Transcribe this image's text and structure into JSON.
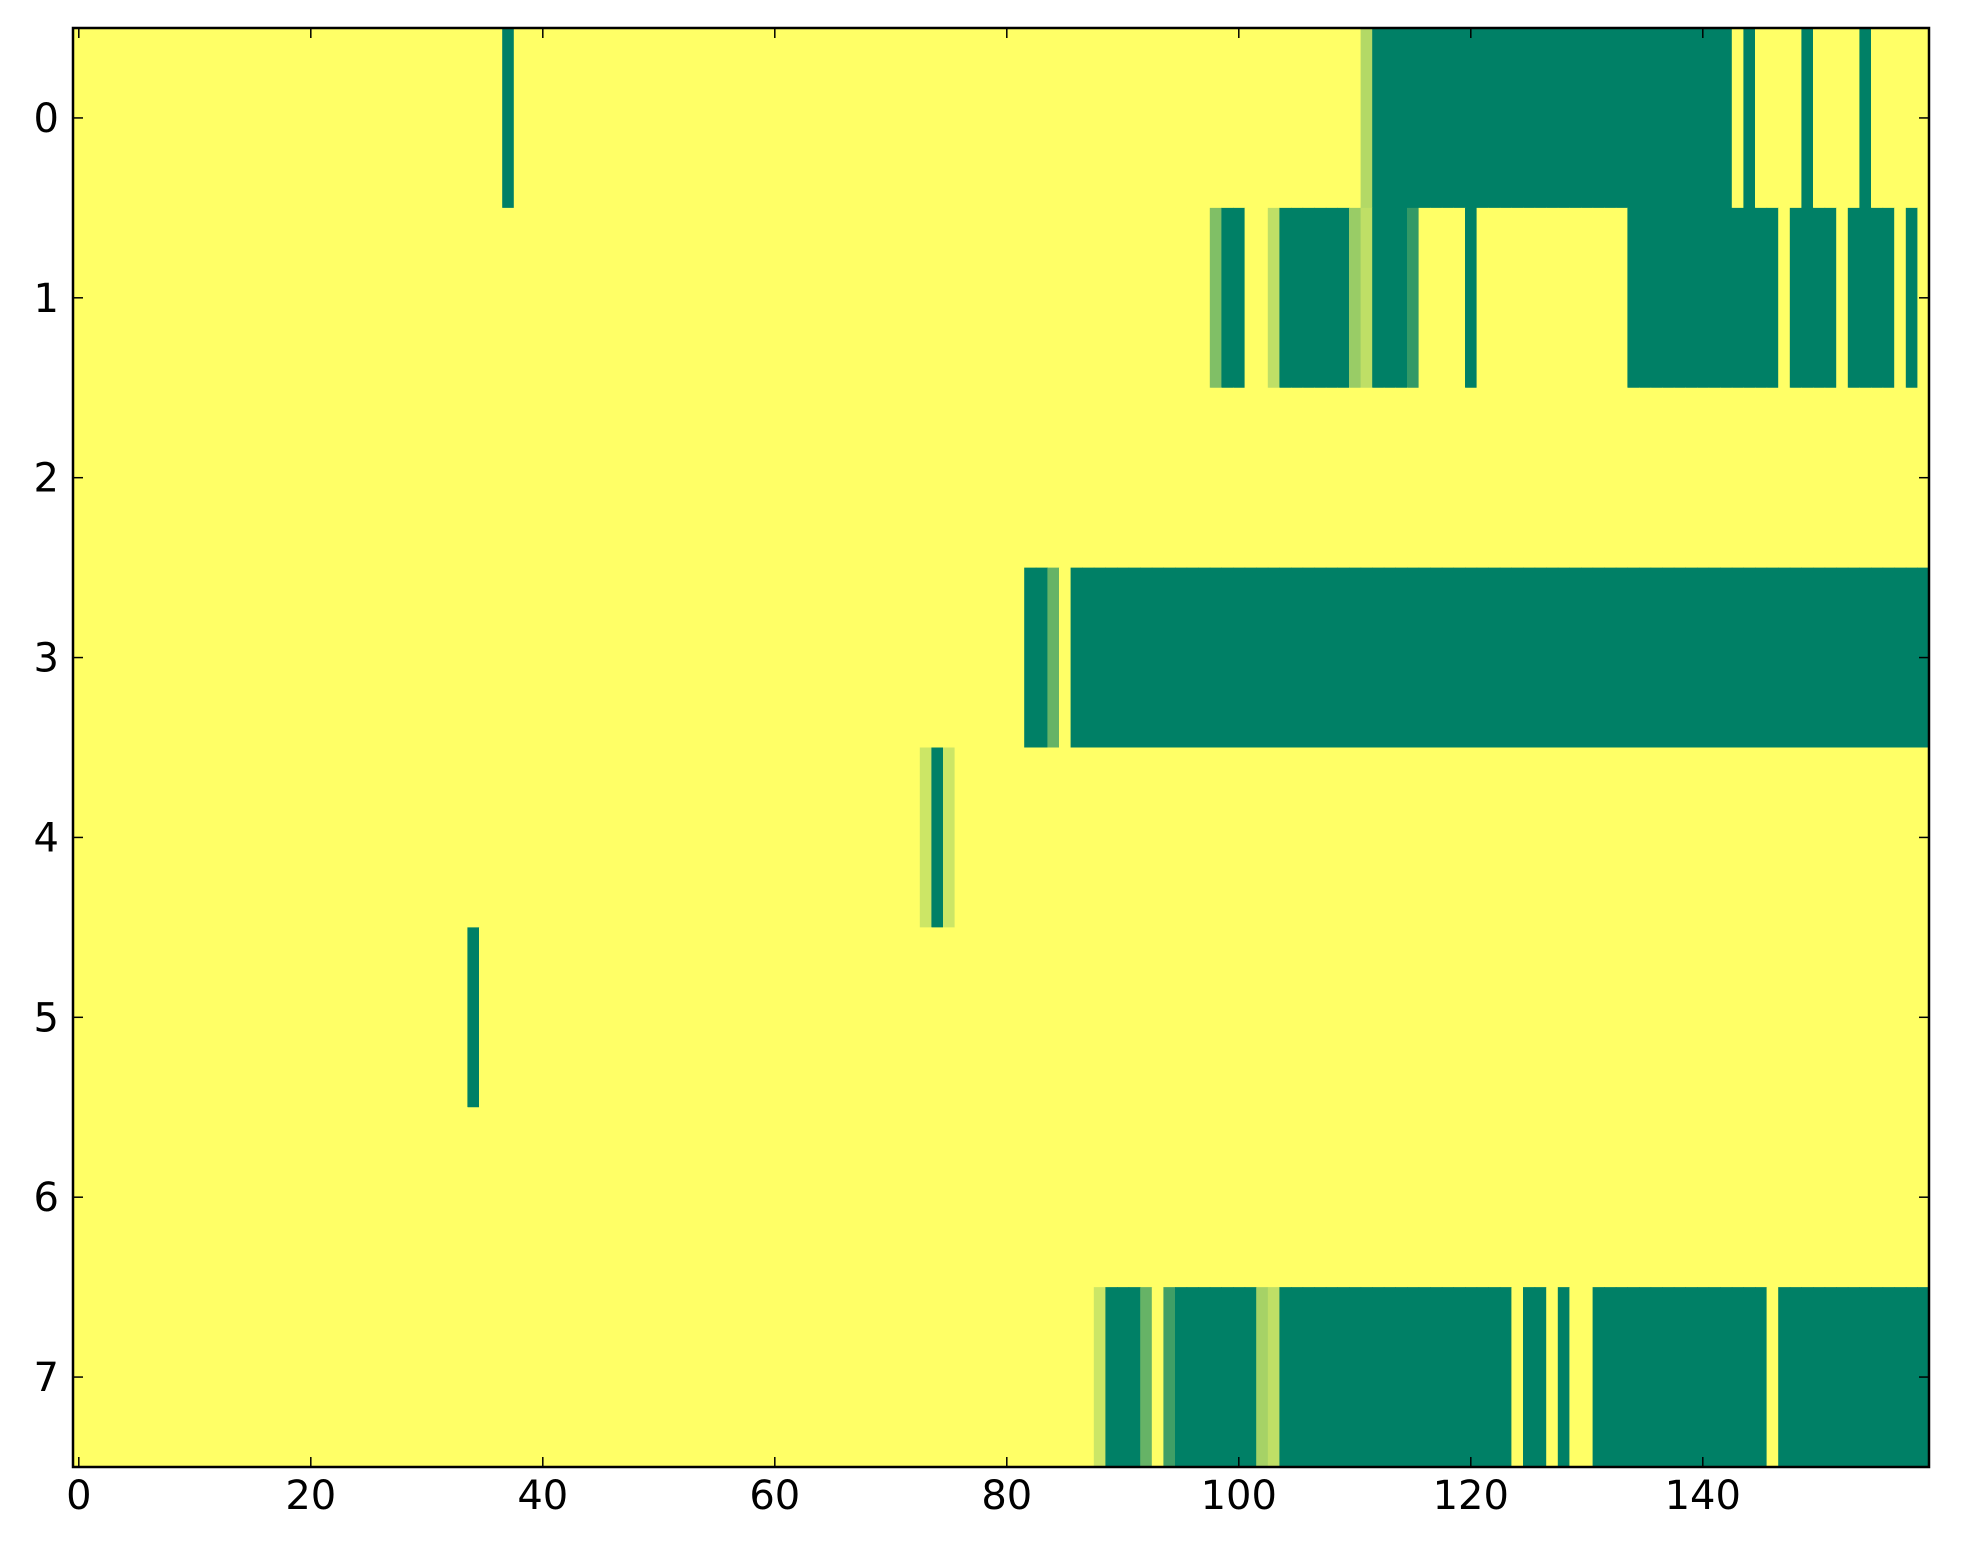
{
  "chart_data": {
    "type": "heatmap",
    "colormap": "summer_r",
    "zlim": [
      0,
      1
    ],
    "xlim": [
      -0.5,
      159.5
    ],
    "ylim": [
      7.5,
      -0.5
    ],
    "xticks": [
      0,
      20,
      40,
      60,
      80,
      100,
      120,
      140
    ],
    "yticks": [
      0,
      1,
      2,
      3,
      4,
      5,
      6,
      7
    ],
    "z": [
      [
        0,
        0,
        0,
        0,
        0,
        0,
        0,
        0,
        0,
        0,
        0,
        0,
        0,
        0,
        0,
        0,
        0,
        0,
        0,
        0,
        0,
        0,
        0,
        0,
        0,
        0,
        0,
        0,
        0,
        0,
        0,
        0,
        0,
        0,
        0,
        0,
        0,
        1,
        0,
        0,
        0,
        0,
        0,
        0,
        0,
        0,
        0,
        0,
        0,
        0,
        0,
        0,
        0,
        0,
        0,
        0,
        0,
        0,
        0,
        0,
        0,
        0,
        0,
        0,
        0,
        0,
        0,
        0,
        0,
        0,
        0,
        0,
        0,
        0,
        0,
        0,
        0,
        0,
        0,
        0,
        0,
        0,
        0,
        0,
        0,
        0,
        0,
        0,
        0,
        0,
        0,
        0,
        0,
        0,
        0,
        0,
        0,
        0,
        0,
        0,
        0,
        0,
        0,
        0,
        0,
        0,
        0,
        0,
        0,
        0,
        0,
        0.3,
        1,
        1,
        1,
        1,
        1,
        1,
        1,
        1,
        1,
        1,
        1,
        1,
        1,
        1,
        1,
        1,
        1,
        1,
        1,
        1,
        1,
        1,
        1,
        1,
        1,
        1,
        1,
        1,
        1,
        1,
        1,
        0,
        1,
        0,
        0,
        0,
        0,
        1,
        0,
        0,
        0,
        0,
        1,
        0,
        0,
        0,
        0,
        0
      ],
      [
        0,
        0,
        0,
        0,
        0,
        0,
        0,
        0,
        0,
        0,
        0,
        0,
        0,
        0,
        0,
        0,
        0,
        0,
        0,
        0,
        0,
        0,
        0,
        0,
        0,
        0,
        0,
        0,
        0,
        0,
        0,
        0,
        0,
        0,
        0,
        0,
        0,
        0,
        0,
        0,
        0,
        0,
        0,
        0,
        0,
        0,
        0,
        0,
        0,
        0,
        0,
        0,
        0,
        0,
        0,
        0,
        0,
        0,
        0,
        0,
        0,
        0,
        0,
        0,
        0,
        0,
        0,
        0,
        0,
        0,
        0,
        0,
        0,
        0,
        0,
        0,
        0,
        0,
        0,
        0,
        0,
        0,
        0,
        0,
        0,
        0,
        0,
        0,
        0,
        0,
        0,
        0,
        0,
        0,
        0,
        0,
        0,
        0,
        0.5,
        1,
        1,
        0,
        0,
        0.25,
        1,
        1,
        1,
        1,
        1,
        1,
        0.4,
        0.25,
        1,
        1,
        1,
        0.8,
        0,
        0,
        0,
        0,
        1,
        0,
        0,
        0,
        0,
        0,
        0,
        0,
        0,
        0,
        0,
        0,
        0,
        0,
        1,
        1,
        1,
        1,
        1,
        1,
        1,
        1,
        1,
        1,
        1,
        1,
        1,
        0,
        1,
        1,
        1,
        1,
        0,
        1,
        1,
        1,
        1,
        0,
        1,
        0
      ],
      [
        0,
        0,
        0,
        0,
        0,
        0,
        0,
        0,
        0,
        0,
        0,
        0,
        0,
        0,
        0,
        0,
        0,
        0,
        0,
        0,
        0,
        0,
        0,
        0,
        0,
        0,
        0,
        0,
        0,
        0,
        0,
        0,
        0,
        0,
        0,
        0,
        0,
        0,
        0,
        0,
        0,
        0,
        0,
        0,
        0,
        0,
        0,
        0,
        0,
        0,
        0,
        0,
        0,
        0,
        0,
        0,
        0,
        0,
        0,
        0,
        0,
        0,
        0,
        0,
        0,
        0,
        0,
        0,
        0,
        0,
        0,
        0,
        0,
        0,
        0,
        0,
        0,
        0,
        0,
        0,
        0,
        0,
        0,
        0,
        0,
        0,
        0,
        0,
        0,
        0,
        0,
        0,
        0,
        0,
        0,
        0,
        0,
        0,
        0,
        0,
        0,
        0,
        0,
        0,
        0,
        0,
        0,
        0,
        0,
        0,
        0,
        0,
        0,
        0,
        0,
        0,
        0,
        0,
        0,
        0,
        0,
        0,
        0,
        0,
        0,
        0,
        0,
        0,
        0,
        0,
        0,
        0,
        0,
        0,
        0,
        0,
        0,
        0,
        0,
        0,
        0,
        0,
        0,
        0,
        0,
        0,
        0,
        0,
        0,
        0,
        0,
        0,
        0,
        0,
        0,
        0,
        0,
        0,
        0,
        0
      ],
      [
        0,
        0,
        0,
        0,
        0,
        0,
        0,
        0,
        0,
        0,
        0,
        0,
        0,
        0,
        0,
        0,
        0,
        0,
        0,
        0,
        0,
        0,
        0,
        0,
        0,
        0,
        0,
        0,
        0,
        0,
        0,
        0,
        0,
        0,
        0,
        0,
        0,
        0,
        0,
        0,
        0,
        0,
        0,
        0,
        0,
        0,
        0,
        0,
        0,
        0,
        0,
        0,
        0,
        0,
        0,
        0,
        0,
        0,
        0,
        0,
        0,
        0,
        0,
        0,
        0,
        0,
        0,
        0,
        0,
        0,
        0,
        0,
        0,
        0,
        0,
        0,
        0,
        0,
        0,
        0,
        0,
        0,
        1,
        1,
        0.6,
        0,
        1,
        1,
        1,
        1,
        1,
        1,
        1,
        1,
        1,
        1,
        1,
        1,
        1,
        1,
        1,
        1,
        1,
        1,
        1,
        1,
        1,
        1,
        1,
        1,
        1,
        1,
        1,
        1,
        1,
        1,
        1,
        1,
        1,
        1,
        1,
        1,
        1,
        1,
        1,
        1,
        1,
        1,
        1,
        1,
        1,
        1,
        1,
        1,
        1,
        1,
        1,
        1,
        1,
        1,
        1,
        1,
        1,
        1,
        1,
        1,
        1,
        1,
        1,
        1,
        1,
        1,
        1,
        1,
        1,
        1,
        1,
        1,
        1,
        1
      ],
      [
        0,
        0,
        0,
        0,
        0,
        0,
        0,
        0,
        0,
        0,
        0,
        0,
        0,
        0,
        0,
        0,
        0,
        0,
        0,
        0,
        0,
        0,
        0,
        0,
        0,
        0,
        0,
        0,
        0,
        0,
        0,
        0,
        0,
        0,
        0,
        0,
        0,
        0,
        0,
        0,
        0,
        0,
        0,
        0,
        0,
        0,
        0,
        0,
        0,
        0,
        0,
        0,
        0,
        0,
        0,
        0,
        0,
        0,
        0,
        0,
        0,
        0,
        0,
        0,
        0,
        0,
        0,
        0,
        0,
        0,
        0,
        0,
        0,
        0.2,
        1,
        0.2,
        0,
        0,
        0,
        0,
        0,
        0,
        0,
        0,
        0,
        0,
        0,
        0,
        0,
        0,
        0,
        0,
        0,
        0,
        0,
        0,
        0,
        0,
        0,
        0,
        0,
        0,
        0,
        0,
        0,
        0,
        0,
        0,
        0,
        0,
        0,
        0,
        0,
        0,
        0,
        0,
        0,
        0,
        0,
        0,
        0,
        0,
        0,
        0,
        0,
        0,
        0,
        0,
        0,
        0,
        0,
        0,
        0,
        0,
        0,
        0,
        0,
        0,
        0,
        0,
        0,
        0,
        0,
        0,
        0,
        0,
        0,
        0,
        0,
        0,
        0,
        0,
        0,
        0,
        0,
        0,
        0,
        0,
        0,
        0
      ],
      [
        0,
        0,
        0,
        0,
        0,
        0,
        0,
        0,
        0,
        0,
        0,
        0,
        0,
        0,
        0,
        0,
        0,
        0,
        0,
        0,
        0,
        0,
        0,
        0,
        0,
        0,
        0,
        0,
        0,
        0,
        0,
        0,
        0,
        0,
        1,
        0,
        0,
        0,
        0,
        0,
        0,
        0,
        0,
        0,
        0,
        0,
        0,
        0,
        0,
        0,
        0,
        0,
        0,
        0,
        0,
        0,
        0,
        0,
        0,
        0,
        0,
        0,
        0,
        0,
        0,
        0,
        0,
        0,
        0,
        0,
        0,
        0,
        0,
        0,
        0,
        0,
        0,
        0,
        0,
        0,
        0,
        0,
        0,
        0,
        0,
        0,
        0,
        0,
        0,
        0,
        0,
        0,
        0,
        0,
        0,
        0,
        0,
        0,
        0,
        0,
        0,
        0,
        0,
        0,
        0,
        0,
        0,
        0,
        0,
        0,
        0,
        0,
        0,
        0,
        0,
        0,
        0,
        0,
        0,
        0,
        0,
        0,
        0,
        0,
        0,
        0,
        0,
        0,
        0,
        0,
        0,
        0,
        0,
        0,
        0,
        0,
        0,
        0,
        0,
        0,
        0,
        0,
        0,
        0,
        0,
        0,
        0,
        0,
        0,
        0,
        0,
        0,
        0,
        0,
        0,
        0,
        0,
        0,
        0,
        0
      ],
      [
        0,
        0,
        0,
        0,
        0,
        0,
        0,
        0,
        0,
        0,
        0,
        0,
        0,
        0,
        0,
        0,
        0,
        0,
        0,
        0,
        0,
        0,
        0,
        0,
        0,
        0,
        0,
        0,
        0,
        0,
        0,
        0,
        0,
        0,
        0,
        0,
        0,
        0,
        0,
        0,
        0,
        0,
        0,
        0,
        0,
        0,
        0,
        0,
        0,
        0,
        0,
        0,
        0,
        0,
        0,
        0,
        0,
        0,
        0,
        0,
        0,
        0,
        0,
        0,
        0,
        0,
        0,
        0,
        0,
        0,
        0,
        0,
        0,
        0,
        0,
        0,
        0,
        0,
        0,
        0,
        0,
        0,
        0,
        0,
        0,
        0,
        0,
        0,
        0,
        0,
        0,
        0,
        0,
        0,
        0,
        0,
        0,
        0,
        0,
        0,
        0,
        0,
        0,
        0,
        0,
        0,
        0,
        0,
        0,
        0,
        0,
        0,
        0,
        0,
        0,
        0,
        0,
        0,
        0,
        0,
        0,
        0,
        0,
        0,
        0,
        0,
        0,
        0,
        0,
        0,
        0,
        0,
        0,
        0,
        0,
        0,
        0,
        0,
        0,
        0,
        0,
        0,
        0,
        0,
        0,
        0,
        0,
        0,
        0,
        0,
        0,
        0,
        0,
        0,
        0,
        0,
        0,
        0,
        0,
        0
      ],
      [
        0,
        0,
        0,
        0,
        0,
        0,
        0,
        0,
        0,
        0,
        0,
        0,
        0,
        0,
        0,
        0,
        0,
        0,
        0,
        0,
        0,
        0,
        0,
        0,
        0,
        0,
        0,
        0,
        0,
        0,
        0,
        0,
        0,
        0,
        0,
        0,
        0,
        0,
        0,
        0,
        0,
        0,
        0,
        0,
        0,
        0,
        0,
        0,
        0,
        0,
        0,
        0,
        0,
        0,
        0,
        0,
        0,
        0,
        0,
        0,
        0,
        0,
        0,
        0,
        0,
        0,
        0,
        0,
        0,
        0,
        0,
        0,
        0,
        0,
        0,
        0,
        0,
        0,
        0,
        0,
        0,
        0,
        0,
        0,
        0,
        0,
        0,
        0,
        0.2,
        1,
        1,
        1,
        0.6,
        0,
        0.75,
        1,
        1,
        1,
        1,
        1,
        1,
        1,
        0.35,
        0.25,
        1,
        1,
        1,
        1,
        1,
        1,
        1,
        1,
        1,
        1,
        1,
        1,
        1,
        1,
        1,
        1,
        1,
        1,
        1,
        1,
        0,
        1,
        1,
        0,
        1,
        0,
        0,
        1,
        1,
        1,
        1,
        1,
        1,
        1,
        1,
        1,
        1,
        1,
        1,
        1,
        1,
        1,
        0,
        1,
        1,
        1,
        1,
        1,
        1,
        1,
        1,
        1,
        1,
        1,
        1,
        1
      ]
    ]
  }
}
